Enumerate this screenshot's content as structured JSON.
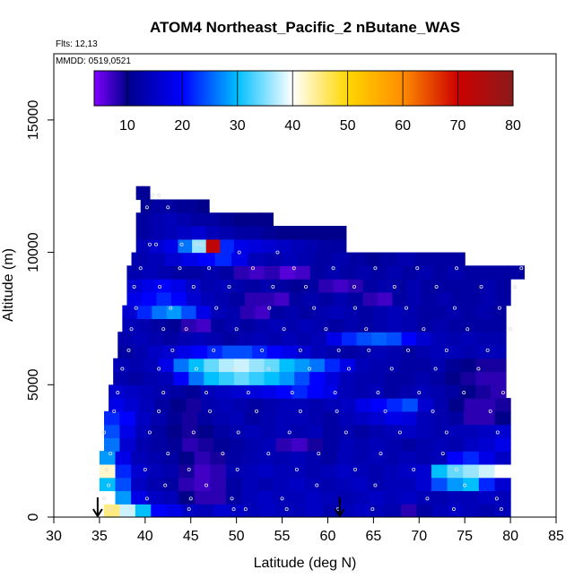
{
  "chart_data": {
    "type": "heatmap",
    "title": "ATOM4 Northeast_Pacific_2 nButane_WAS",
    "flights_label": "Flts: 12,13",
    "dates_label": "MMDD: 0519,0521",
    "xlabel": "Latitude (deg N)",
    "ylabel": "Altitude (m)",
    "xlim": [
      30,
      85
    ],
    "ylim": [
      0,
      17500
    ],
    "xticks": [
      30,
      35,
      40,
      45,
      50,
      55,
      60,
      65,
      70,
      75,
      80,
      85
    ],
    "yticks": [
      0,
      5000,
      10000,
      15000
    ],
    "colorbar": {
      "range": [
        4,
        80
      ],
      "ticks": [
        10,
        20,
        30,
        40,
        50,
        60,
        70,
        80
      ],
      "stops": [
        {
          "v": 4,
          "c": "#8000ff"
        },
        {
          "v": 10,
          "c": "#00008b"
        },
        {
          "v": 20,
          "c": "#0000ff"
        },
        {
          "v": 30,
          "c": "#00bfff"
        },
        {
          "v": 40,
          "c": "#ffffff"
        },
        {
          "v": 50,
          "c": "#ffd700"
        },
        {
          "v": 60,
          "c": "#ff8c00"
        },
        {
          "v": 70,
          "c": "#cc0000"
        },
        {
          "v": 80,
          "c": "#8b1a1a"
        }
      ]
    },
    "arrows_latitude": [
      34.8,
      61.3
    ],
    "layers": [
      {
        "alt_bottom": 0,
        "alt_top": 500,
        "x_start": 35.5,
        "x_end": 80,
        "values": [
          45,
          38,
          30,
          20,
          18,
          15,
          14,
          16,
          15,
          14,
          15,
          14,
          14,
          15,
          13,
          14,
          15,
          14,
          13,
          8,
          12,
          14,
          15,
          14,
          13,
          14
        ]
      },
      {
        "alt_bottom": 500,
        "alt_top": 1000,
        "x_start": 35.0,
        "x_end": 80,
        "values": [
          40,
          28,
          18,
          15,
          14,
          10,
          8,
          8,
          12,
          14,
          15,
          14,
          14,
          15,
          14,
          13,
          14,
          15,
          14,
          15,
          14,
          13,
          14,
          14,
          15,
          14
        ]
      },
      {
        "alt_bottom": 1000,
        "alt_top": 1500,
        "x_start": 35.0,
        "x_end": 80,
        "values": [
          30,
          24,
          15,
          13,
          12,
          8,
          7,
          8,
          12,
          14,
          13,
          14,
          15,
          14,
          13,
          14,
          15,
          13,
          14,
          14,
          16,
          24,
          28,
          30,
          22,
          16
        ]
      },
      {
        "alt_bottom": 1500,
        "alt_top": 2000,
        "x_start": 35.0,
        "x_end": 80,
        "values": [
          42,
          22,
          16,
          14,
          13,
          9,
          7,
          8,
          13,
          14,
          15,
          14,
          14,
          13,
          14,
          15,
          14,
          13,
          14,
          15,
          16,
          30,
          34,
          36,
          38,
          40
        ]
      },
      {
        "alt_bottom": 2000,
        "alt_top": 2500,
        "x_start": 35.0,
        "x_end": 80,
        "values": [
          28,
          18,
          14,
          13,
          12,
          10,
          8,
          9,
          12,
          13,
          14,
          13,
          14,
          13,
          12,
          14,
          13,
          14,
          13,
          14,
          13,
          14,
          20,
          22,
          18,
          15
        ]
      },
      {
        "alt_bottom": 2500,
        "alt_top": 3000,
        "x_start": 35.5,
        "x_end": 80,
        "values": [
          26,
          16,
          13,
          12,
          11,
          8,
          9,
          11,
          12,
          13,
          14,
          8,
          7,
          9,
          12,
          14,
          13,
          14,
          13,
          12,
          13,
          14,
          13,
          15,
          16,
          18
        ]
      },
      {
        "alt_bottom": 3000,
        "alt_top": 3500,
        "x_start": 35.5,
        "x_end": 80,
        "values": [
          24,
          18,
          14,
          12,
          10,
          9,
          10,
          12,
          13,
          14,
          13,
          14,
          13,
          14,
          12,
          13,
          12,
          13,
          14,
          15,
          14,
          13,
          14,
          14,
          15,
          16
        ]
      },
      {
        "alt_bottom": 3500,
        "alt_top": 4000,
        "x_start": 35.5,
        "x_end": 80,
        "values": [
          22,
          20,
          15,
          13,
          11,
          9,
          12,
          13,
          14,
          12,
          13,
          14,
          14,
          13,
          12,
          14,
          15,
          16,
          18,
          17,
          14,
          13,
          12,
          8,
          8,
          10
        ]
      },
      {
        "alt_bottom": 4000,
        "alt_top": 4500,
        "x_start": 36.0,
        "x_end": 80,
        "values": [
          18,
          16,
          14,
          12,
          10,
          9,
          13,
          14,
          13,
          12,
          13,
          14,
          14,
          13,
          14,
          15,
          18,
          20,
          22,
          24,
          16,
          13,
          10,
          8,
          8,
          9
        ]
      },
      {
        "alt_bottom": 4500,
        "alt_top": 5000,
        "x_start": 36.0,
        "x_end": 79.5,
        "values": [
          16,
          15,
          14,
          13,
          12,
          11,
          14,
          15,
          16,
          17,
          18,
          20,
          22,
          20,
          18,
          14,
          13,
          14,
          12,
          13,
          14,
          13,
          12,
          10,
          9,
          8
        ]
      },
      {
        "alt_bottom": 5000,
        "alt_top": 5500,
        "x_start": 36.5,
        "x_end": 79.5,
        "values": [
          13,
          12,
          13,
          14,
          20,
          26,
          30,
          32,
          34,
          32,
          30,
          28,
          24,
          20,
          17,
          14,
          13,
          13,
          12,
          12,
          13,
          12,
          10,
          9,
          8,
          8
        ]
      },
      {
        "alt_bottom": 5500,
        "alt_top": 6000,
        "x_start": 36.5,
        "x_end": 79.5,
        "values": [
          14,
          13,
          14,
          18,
          26,
          30,
          34,
          37,
          38,
          36,
          34,
          30,
          28,
          26,
          22,
          18,
          14,
          13,
          13,
          12,
          12,
          13,
          11,
          10,
          9,
          9
        ]
      },
      {
        "alt_bottom": 6000,
        "alt_top": 6500,
        "x_start": 37.0,
        "x_end": 79.5,
        "values": [
          12,
          13,
          15,
          16,
          18,
          20,
          22,
          24,
          24,
          22,
          20,
          18,
          16,
          14,
          13,
          12,
          13,
          14,
          13,
          12,
          13,
          14,
          14,
          13,
          14,
          14
        ]
      },
      {
        "alt_bottom": 6500,
        "alt_top": 7000,
        "x_start": 37.0,
        "x_end": 79.5,
        "values": [
          13,
          14,
          13,
          12,
          13,
          14,
          13,
          12,
          13,
          14,
          13,
          14,
          13,
          14,
          18,
          22,
          24,
          25,
          24,
          20,
          16,
          14,
          13,
          14,
          13,
          13
        ]
      },
      {
        "alt_bottom": 7000,
        "alt_top": 7500,
        "x_start": 37.5,
        "x_end": 79.5,
        "values": [
          14,
          13,
          12,
          11,
          8,
          7,
          12,
          13,
          12,
          13,
          14,
          13,
          14,
          13,
          12,
          13,
          12,
          13,
          14,
          13,
          12,
          13,
          12,
          12,
          12,
          12
        ]
      },
      {
        "alt_bottom": 7500,
        "alt_top": 8000,
        "x_start": 37.5,
        "x_end": 79.5,
        "values": [
          16,
          22,
          26,
          28,
          24,
          18,
          14,
          13,
          8,
          7,
          12,
          13,
          12,
          13,
          14,
          13,
          12,
          13,
          14,
          13,
          12,
          12,
          13,
          12,
          13,
          12
        ]
      },
      {
        "alt_bottom": 8000,
        "alt_top": 8500,
        "x_start": 38.0,
        "x_end": 80,
        "values": [
          18,
          20,
          22,
          20,
          16,
          14,
          13,
          12,
          8,
          8,
          7,
          12,
          13,
          12,
          13,
          12,
          8,
          7,
          12,
          13,
          12,
          13,
          12,
          12,
          13,
          12
        ]
      },
      {
        "alt_bottom": 8500,
        "alt_top": 9000,
        "x_start": 38.0,
        "x_end": 80,
        "values": [
          16,
          18,
          20,
          18,
          15,
          13,
          14,
          13,
          12,
          13,
          12,
          11,
          12,
          8,
          7,
          8,
          12,
          13,
          12,
          13,
          12,
          12,
          12,
          12,
          13,
          12
        ]
      },
      {
        "alt_bottom": 9000,
        "alt_top": 9500,
        "x_start": 38.0,
        "x_end": 81.5,
        "values": [
          13,
          14,
          13,
          12,
          12,
          13,
          12,
          8,
          7,
          8,
          6,
          7,
          12,
          13,
          12,
          13,
          12,
          13,
          12,
          13,
          12,
          13,
          12,
          12,
          12,
          12
        ]
      },
      {
        "alt_bottom": 9500,
        "alt_top": 10000,
        "x_start": 38.5,
        "x_end": 75,
        "values": [
          13,
          14,
          16,
          18,
          20,
          22,
          18,
          14,
          13,
          14,
          13,
          12,
          13,
          12,
          11,
          12,
          13,
          12,
          12,
          12
        ]
      },
      {
        "alt_bottom": 10000,
        "alt_top": 10500,
        "x_start": 39.0,
        "x_end": 62,
        "values": [
          14,
          16,
          18,
          26,
          36,
          72,
          22,
          18,
          17,
          16,
          15,
          14,
          13,
          12,
          12
        ]
      },
      {
        "alt_bottom": 10500,
        "alt_top": 11000,
        "x_start": 39.0,
        "x_end": 62,
        "values": [
          12,
          13,
          14,
          15,
          16,
          14,
          13,
          12,
          12,
          11,
          10,
          10,
          10,
          10,
          10
        ]
      },
      {
        "alt_bottom": 11000,
        "alt_top": 11500,
        "x_start": 39.0,
        "x_end": 54,
        "values": [
          12,
          13,
          14,
          13,
          12,
          12,
          11,
          10,
          10,
          10
        ]
      },
      {
        "alt_bottom": 11500,
        "alt_top": 12000,
        "x_start": 39.5,
        "x_end": 47,
        "values": [
          11,
          12,
          12,
          11,
          11,
          10
        ]
      },
      {
        "alt_bottom": 12000,
        "alt_top": 12500,
        "x_start": 39.0,
        "x_end": 40.5,
        "values": [
          11,
          11
        ]
      }
    ],
    "sample_points": [
      [
        36.2,
        300
      ],
      [
        38.5,
        300
      ],
      [
        44.8,
        300
      ],
      [
        49.7,
        300
      ],
      [
        51.0,
        300
      ],
      [
        55.5,
        300
      ],
      [
        61.1,
        300
      ],
      [
        64.9,
        300
      ],
      [
        73.8,
        300
      ],
      [
        79.0,
        300
      ],
      [
        35.5,
        700
      ],
      [
        40.2,
        700
      ],
      [
        45.0,
        700
      ],
      [
        49.5,
        700
      ],
      [
        55.0,
        700
      ],
      [
        70.9,
        700
      ],
      [
        78.5,
        700
      ],
      [
        36.0,
        1200
      ],
      [
        42.2,
        1200
      ],
      [
        46.7,
        1200
      ],
      [
        58.8,
        1200
      ],
      [
        65.2,
        1200
      ],
      [
        75.0,
        1200
      ],
      [
        35.8,
        1800
      ],
      [
        40.0,
        1800
      ],
      [
        44.8,
        1800
      ],
      [
        50.1,
        1800
      ],
      [
        56.6,
        1800
      ],
      [
        63.0,
        1800
      ],
      [
        69.4,
        1800
      ],
      [
        74.1,
        1800
      ],
      [
        36.2,
        2400
      ],
      [
        42.5,
        2400
      ],
      [
        48.5,
        2400
      ],
      [
        53.5,
        2400
      ],
      [
        59.0,
        2400
      ],
      [
        65.8,
        2400
      ],
      [
        72.6,
        2400
      ],
      [
        35.5,
        3200
      ],
      [
        40.5,
        3200
      ],
      [
        45.3,
        3200
      ],
      [
        50.2,
        3200
      ],
      [
        55.8,
        3200
      ],
      [
        62.0,
        3200
      ],
      [
        67.9,
        3200
      ],
      [
        73.0,
        3200
      ],
      [
        78.6,
        3200
      ],
      [
        36.6,
        4000
      ],
      [
        41.5,
        4000
      ],
      [
        47.1,
        4000
      ],
      [
        52.2,
        4000
      ],
      [
        57.0,
        4000
      ],
      [
        61.0,
        4000
      ],
      [
        66.3,
        4000
      ],
      [
        71.5,
        4000
      ],
      [
        77.8,
        4000
      ],
      [
        37.0,
        4700
      ],
      [
        42.0,
        4700
      ],
      [
        46.7,
        4700
      ],
      [
        51.3,
        4700
      ],
      [
        56.1,
        4700
      ],
      [
        60.8,
        4700
      ],
      [
        65.5,
        4700
      ],
      [
        70.0,
        4700
      ],
      [
        74.9,
        4700
      ],
      [
        79.2,
        4700
      ],
      [
        37.5,
        5600
      ],
      [
        41.5,
        5600
      ],
      [
        45.6,
        5600
      ],
      [
        49.8,
        5600
      ],
      [
        53.5,
        5600
      ],
      [
        58.0,
        5600
      ],
      [
        62.3,
        5600
      ],
      [
        67.0,
        5600
      ],
      [
        71.8,
        5600
      ],
      [
        76.5,
        5600
      ],
      [
        38.2,
        6300
      ],
      [
        43.0,
        6300
      ],
      [
        47.5,
        6300
      ],
      [
        52.8,
        6300
      ],
      [
        57.0,
        6300
      ],
      [
        61.2,
        6300
      ],
      [
        64.5,
        6300
      ],
      [
        68.8,
        6300
      ],
      [
        73.0,
        6300
      ],
      [
        77.5,
        6300
      ],
      [
        38.5,
        7100
      ],
      [
        42.0,
        7100
      ],
      [
        44.5,
        7100
      ],
      [
        50.0,
        7100
      ],
      [
        55.2,
        7100
      ],
      [
        59.8,
        7100
      ],
      [
        64.2,
        7100
      ],
      [
        70.5,
        7100
      ],
      [
        75.3,
        7100
      ],
      [
        80.0,
        7100
      ],
      [
        39.0,
        7900
      ],
      [
        42.8,
        7900
      ],
      [
        47.8,
        7900
      ],
      [
        53.6,
        7900
      ],
      [
        58.5,
        7900
      ],
      [
        63.0,
        7900
      ],
      [
        68.6,
        7900
      ],
      [
        73.9,
        7900
      ],
      [
        78.8,
        7900
      ],
      [
        38.8,
        8700
      ],
      [
        41.6,
        8700
      ],
      [
        45.3,
        8700
      ],
      [
        49.2,
        8700
      ],
      [
        54.0,
        8700
      ],
      [
        57.6,
        8700
      ],
      [
        62.9,
        8700
      ],
      [
        67.3,
        8700
      ],
      [
        71.9,
        8700
      ],
      [
        76.8,
        8700
      ],
      [
        80.5,
        8700
      ],
      [
        39.5,
        9400
      ],
      [
        43.8,
        9400
      ],
      [
        47.0,
        9400
      ],
      [
        51.8,
        9400
      ],
      [
        56.3,
        9400
      ],
      [
        60.6,
        9400
      ],
      [
        65.2,
        9400
      ],
      [
        69.8,
        9400
      ],
      [
        74.1,
        9400
      ],
      [
        81.2,
        9400
      ],
      [
        40.5,
        10300
      ],
      [
        41.2,
        10300
      ],
      [
        44.0,
        10300
      ],
      [
        46.2,
        10300
      ],
      [
        45.6,
        10300
      ],
      [
        50.3,
        10000
      ],
      [
        54.5,
        10000
      ],
      [
        40.8,
        12150
      ],
      [
        41.5,
        12150
      ],
      [
        40.2,
        11700
      ],
      [
        42.5,
        11700
      ]
    ]
  }
}
